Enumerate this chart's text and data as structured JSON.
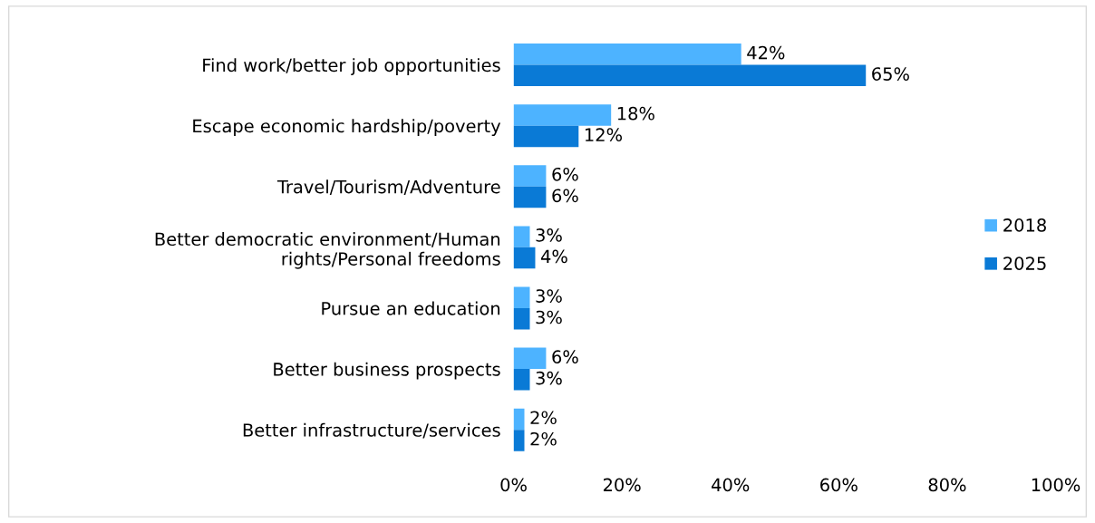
{
  "chart_data": {
    "type": "bar",
    "orientation": "horizontal",
    "categories": [
      "Find work/better job opportunities",
      "Escape economic hardship/poverty",
      "Travel/Tourism/Adventure",
      "Better democratic environment/Human\nrights/Personal freedoms",
      "Pursue an education",
      "Better business prospects",
      "Better infrastructure/services"
    ],
    "series": [
      {
        "name": "2018",
        "color": "#4db3ff",
        "values": [
          42,
          18,
          6,
          3,
          3,
          6,
          2
        ],
        "value_labels": [
          "42%",
          "18%",
          "6%",
          "3%",
          "3%",
          "6%",
          "2%"
        ]
      },
      {
        "name": "2025",
        "color": "#0a7ad6",
        "values": [
          65,
          12,
          6,
          4,
          3,
          3,
          2
        ],
        "value_labels": [
          "65%",
          "12%",
          "6%",
          "4%",
          "3%",
          "3%",
          "2%"
        ]
      }
    ],
    "xlim": [
      0,
      100
    ],
    "xticks": [
      {
        "value": 0,
        "label": "0%"
      },
      {
        "value": 20,
        "label": "20%"
      },
      {
        "value": 40,
        "label": "40%"
      },
      {
        "value": 60,
        "label": "60%"
      },
      {
        "value": 80,
        "label": "80%"
      },
      {
        "value": 100,
        "label": "100%"
      }
    ],
    "grid": false,
    "legend": "right"
  }
}
